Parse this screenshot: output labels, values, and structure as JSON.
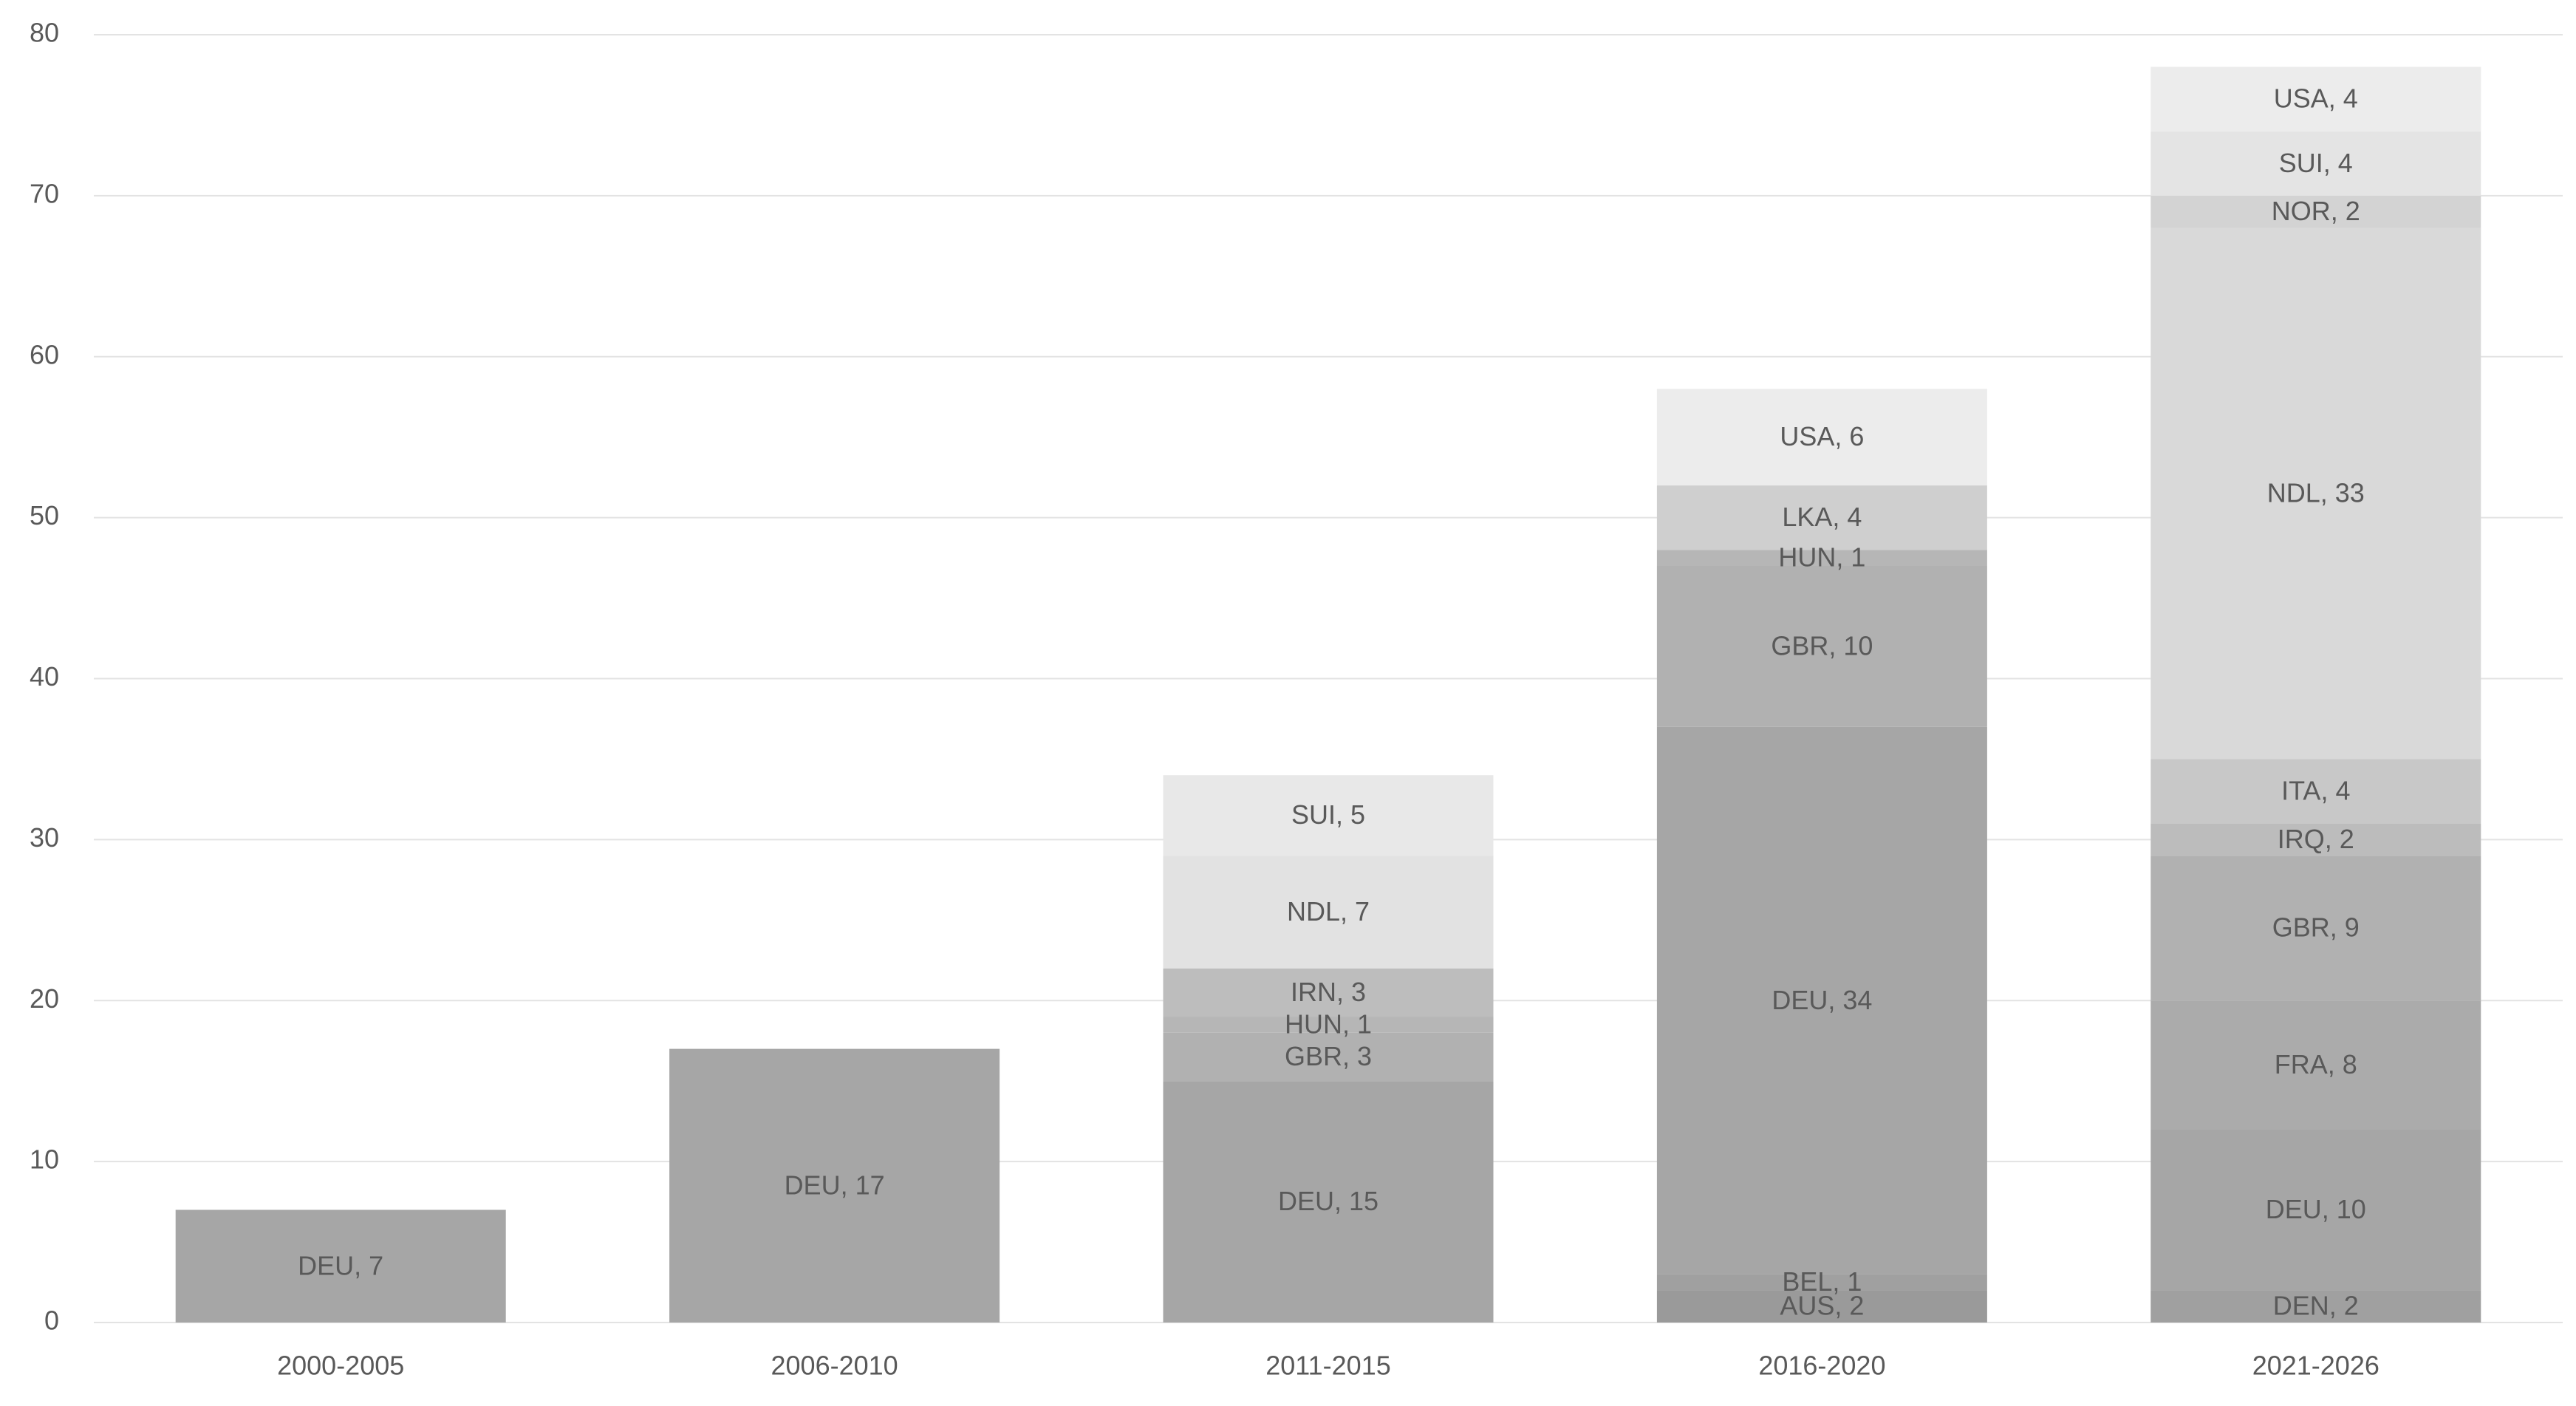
{
  "chart_data": {
    "type": "stacked_bar",
    "categories": [
      "2000-2005",
      "2006-2010",
      "2011-2015",
      "2016-2020",
      "2021-2026"
    ],
    "stacks": [
      {
        "values": [
          7
        ],
        "value_labels": [
          "DEU, 7"
        ],
        "colors": [
          "#a6a6a6"
        ]
      },
      {
        "values": [
          17
        ],
        "value_labels": [
          "DEU, 17"
        ],
        "colors": [
          "#a6a6a6"
        ]
      },
      {
        "values": [
          15,
          3,
          1,
          3,
          7,
          5
        ],
        "value_labels": [
          "DEU, 15",
          "GBR, 3",
          "HUN, 1",
          "IRN, 3",
          "NDL, 7",
          "SUI, 5"
        ],
        "colors": [
          "#a6a6a6",
          "#b1b1b1",
          "#b6b6b6",
          "#bdbdbd",
          "#e2e2e2",
          "#e8e8e8"
        ]
      },
      {
        "values": [
          2,
          1,
          34,
          10,
          1,
          4,
          6
        ],
        "value_labels": [
          "AUS, 2",
          "BEL, 1",
          "DEU, 34",
          "GBR, 10",
          "HUN, 1",
          "LKA, 4",
          "USA, 6"
        ],
        "colors": [
          "#9a9a9a",
          "#a0a0a0",
          "#a6a6a6",
          "#b1b1b1",
          "#b6b6b6",
          "#cfcfcf",
          "#ececec"
        ]
      },
      {
        "values": [
          2,
          10,
          8,
          9,
          2,
          4,
          33,
          2,
          4,
          4
        ],
        "value_labels": [
          "DEN, 2",
          "DEU, 10",
          "FRA, 8",
          "GBR, 9",
          "IRQ, 2",
          "ITA, 4",
          "NDL, 33",
          "NOR, 2",
          "SUI, 4",
          "USA, 4"
        ],
        "colors": [
          "#a0a0a0",
          "#a6a6a6",
          "#ababab",
          "#b1b1b1",
          "#bcbcbc",
          "#c8c8c8",
          "#d9d9d9",
          "#d3d3d3",
          "#e4e4e4",
          "#ececec"
        ]
      }
    ],
    "ylim": [
      0,
      80
    ],
    "yticks": [
      0,
      10,
      20,
      30,
      40,
      50,
      60,
      70,
      80
    ],
    "grid": true
  }
}
